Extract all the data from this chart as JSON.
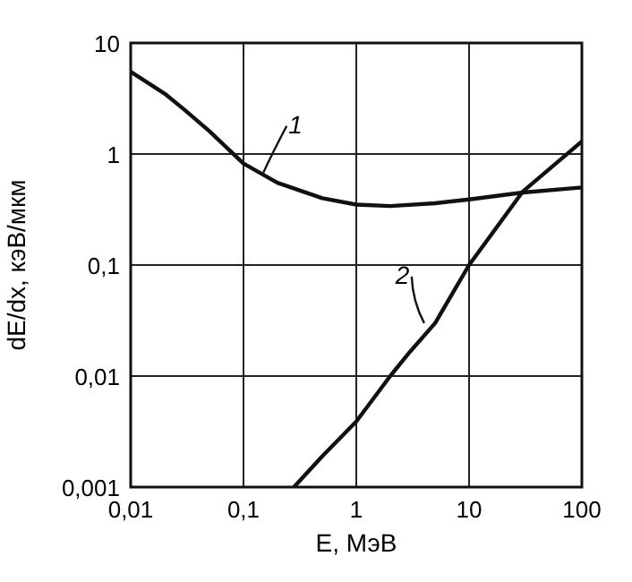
{
  "chart_data": {
    "type": "line",
    "xlabel": "E, МэВ",
    "ylabel": "dE/dx, кэВ/мкм",
    "log": "xy",
    "grid": true,
    "marker": "none",
    "line_style": "solid",
    "xlim": [
      0.01,
      100
    ],
    "ylim": [
      0.001,
      10
    ],
    "xticks": [
      {
        "value": 0.01,
        "label": "0,01"
      },
      {
        "value": 0.1,
        "label": "0,1"
      },
      1,
      10,
      100
    ],
    "yticks": [
      {
        "value": 0.001,
        "label": "0,001"
      },
      {
        "value": 0.01,
        "label": "0,01"
      },
      {
        "value": 0.1,
        "label": "0,1"
      },
      1,
      10
    ],
    "series": [
      {
        "color": "#111111",
        "x": [
          0.01,
          0.02,
          0.03,
          0.05,
          0.1,
          0.2,
          0.5,
          1,
          2,
          5,
          10,
          30,
          100
        ],
        "values": [
          5.5,
          3.5,
          2.5,
          1.6,
          0.82,
          0.55,
          0.4,
          0.35,
          0.34,
          0.36,
          0.39,
          0.45,
          0.5
        ]
      },
      {
        "color": "#111111",
        "x": [
          0.28,
          0.5,
          1,
          2,
          3,
          5,
          10,
          30,
          100
        ],
        "values": [
          0.001,
          0.0019,
          0.0039,
          0.01,
          0.0166,
          0.03,
          0.1,
          0.46,
          1.3
        ]
      }
    ],
    "annotations": [
      {
        "text": "1",
        "x": 0.15,
        "y": 0.68
      },
      {
        "text": "2",
        "x": 4,
        "y": 0.03
      }
    ]
  }
}
